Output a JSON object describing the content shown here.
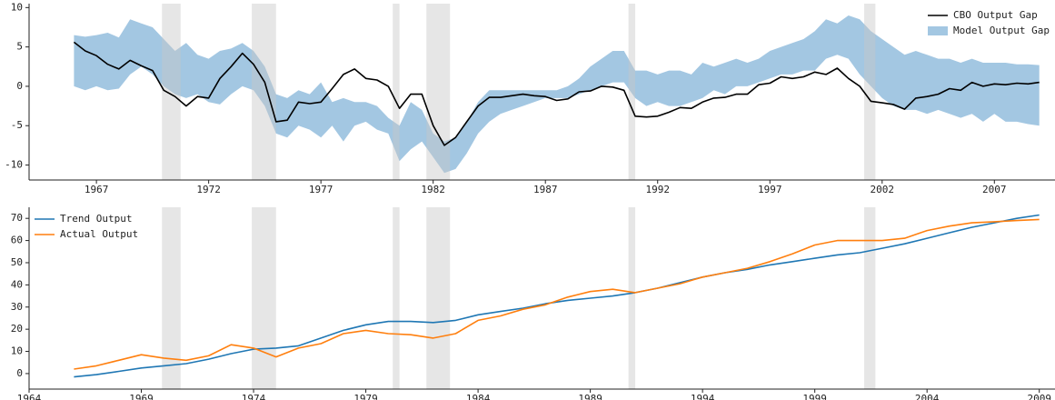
{
  "chart_data": [
    {
      "type": "line",
      "legend": "upper right",
      "xlim": [
        1964,
        2009.7
      ],
      "ylim": [
        -11.9,
        10.5
      ],
      "xticks": [
        1967,
        1972,
        1977,
        1982,
        1987,
        1992,
        1997,
        2002,
        2007
      ],
      "yticks": [
        -10,
        -5,
        0,
        5,
        10
      ],
      "shaded_spans": [
        [
          1969.92,
          1970.75
        ],
        [
          1973.92,
          1975.0
        ],
        [
          1980.2,
          1980.5
        ],
        [
          1981.7,
          1982.75
        ],
        [
          1990.7,
          1991.0
        ],
        [
          2001.2,
          2001.7
        ]
      ],
      "shade_color": "#c8c8c8",
      "x": [
        1966.0,
        1966.5,
        1967.0,
        1967.5,
        1968.0,
        1968.5,
        1969.0,
        1969.5,
        1970.0,
        1970.5,
        1971.0,
        1971.5,
        1972.0,
        1972.5,
        1973.0,
        1973.5,
        1974.0,
        1974.5,
        1975.0,
        1975.5,
        1976.0,
        1976.5,
        1977.0,
        1977.5,
        1978.0,
        1978.5,
        1979.0,
        1979.5,
        1980.0,
        1980.5,
        1981.0,
        1981.5,
        1982.0,
        1982.5,
        1983.0,
        1983.5,
        1984.0,
        1984.5,
        1985.0,
        1985.5,
        1986.0,
        1986.5,
        1987.0,
        1987.5,
        1988.0,
        1988.5,
        1989.0,
        1989.5,
        1990.0,
        1990.5,
        1991.0,
        1991.5,
        1992.0,
        1992.5,
        1993.0,
        1993.5,
        1994.0,
        1994.5,
        1995.0,
        1995.5,
        1996.0,
        1996.5,
        1997.0,
        1997.5,
        1998.0,
        1998.5,
        1999.0,
        1999.5,
        2000.0,
        2000.5,
        2001.0,
        2001.5,
        2002.0,
        2002.5,
        2003.0,
        2003.5,
        2004.0,
        2004.5,
        2005.0,
        2005.5,
        2006.0,
        2006.5,
        2007.0,
        2007.5,
        2008.0,
        2008.5,
        2009.0
      ],
      "series": [
        {
          "name": "CBO Output Gap",
          "color": "#000000",
          "values": [
            5.6,
            4.5,
            3.9,
            2.8,
            2.2,
            3.3,
            2.6,
            2.0,
            -0.5,
            -1.3,
            -2.5,
            -1.3,
            -1.5,
            1.0,
            2.5,
            4.2,
            2.8,
            0.5,
            -4.5,
            -4.3,
            -2.0,
            -2.2,
            -2.0,
            -0.3,
            1.5,
            2.2,
            1.0,
            0.8,
            0.0,
            -2.8,
            -1.0,
            -1.0,
            -5.0,
            -7.5,
            -6.5,
            -4.5,
            -2.5,
            -1.4,
            -1.4,
            -1.2,
            -1.0,
            -1.2,
            -1.3,
            -1.8,
            -1.6,
            -0.7,
            -0.6,
            0.0,
            -0.1,
            -0.5,
            -3.8,
            -3.9,
            -3.8,
            -3.3,
            -2.7,
            -2.8,
            -2.0,
            -1.5,
            -1.4,
            -1.0,
            -1.0,
            0.2,
            0.4,
            1.2,
            1.0,
            1.2,
            1.8,
            1.5,
            2.3,
            1.0,
            0.0,
            -1.9,
            -2.1,
            -2.3,
            -2.9,
            -1.5,
            -1.3,
            -1.0,
            -0.3,
            -0.5,
            0.5,
            0.0,
            0.3,
            0.2,
            0.4,
            0.3,
            0.5
          ]
        },
        {
          "name": "Model Output Gap",
          "color": "#a3c7e2",
          "upper": [
            6.5,
            6.3,
            6.5,
            6.8,
            6.2,
            8.5,
            8.0,
            7.5,
            6.0,
            4.5,
            5.5,
            4.0,
            3.5,
            4.5,
            4.8,
            5.5,
            4.5,
            2.5,
            -1.0,
            -1.5,
            -0.5,
            -1.0,
            0.5,
            -2.0,
            -1.5,
            -2.0,
            -2.0,
            -2.5,
            -4.0,
            -5.0,
            -2.0,
            -3.0,
            -6.0,
            -7.0,
            -6.5,
            -4.5,
            -2.0,
            -0.5,
            -0.5,
            -0.5,
            -0.5,
            -0.5,
            -0.5,
            -0.5,
            0.0,
            1.0,
            2.5,
            3.5,
            4.5,
            4.5,
            2.0,
            2.0,
            1.5,
            2.0,
            2.0,
            1.5,
            3.0,
            2.5,
            3.0,
            3.5,
            3.0,
            3.5,
            4.5,
            5.0,
            5.5,
            6.0,
            7.0,
            8.5,
            8.0,
            9.0,
            8.5,
            7.0,
            6.0,
            5.0,
            4.0,
            4.5,
            4.0,
            3.5,
            3.5,
            3.0,
            3.5,
            3.0,
            3.0,
            3.0,
            2.8,
            2.8,
            2.7
          ],
          "lower": [
            0.0,
            -0.5,
            0.0,
            -0.5,
            -0.3,
            1.5,
            2.5,
            1.5,
            0.0,
            -1.0,
            -1.5,
            -1.0,
            -2.0,
            -2.3,
            -1.0,
            0.0,
            -0.5,
            -2.5,
            -6.0,
            -6.5,
            -5.0,
            -5.5,
            -6.5,
            -5.0,
            -7.0,
            -5.0,
            -4.5,
            -5.5,
            -6.0,
            -9.5,
            -8.0,
            -7.0,
            -9.0,
            -11.0,
            -10.5,
            -8.5,
            -6.0,
            -4.5,
            -3.5,
            -3.0,
            -2.5,
            -2.0,
            -1.5,
            -1.5,
            -1.5,
            -1.0,
            -0.5,
            0.0,
            0.5,
            0.5,
            -1.5,
            -2.5,
            -2.0,
            -2.5,
            -2.5,
            -2.0,
            -1.5,
            -0.5,
            -1.0,
            0.0,
            0.0,
            0.5,
            1.0,
            1.5,
            1.5,
            2.0,
            2.0,
            3.5,
            4.0,
            3.5,
            1.5,
            0.0,
            -1.5,
            -2.5,
            -3.0,
            -3.0,
            -3.5,
            -3.0,
            -3.5,
            -4.0,
            -3.5,
            -4.5,
            -3.5,
            -4.5,
            -4.5,
            -4.8,
            -5.0
          ]
        }
      ]
    },
    {
      "type": "line",
      "legend": "upper left",
      "xlim": [
        1964,
        2009.7
      ],
      "ylim": [
        -7,
        75
      ],
      "xticks": [
        1964,
        1969,
        1974,
        1979,
        1984,
        1989,
        1994,
        1999,
        2004,
        2009
      ],
      "yticks": [
        0,
        10,
        20,
        30,
        40,
        50,
        60,
        70
      ],
      "shaded_spans": [
        [
          1969.92,
          1970.75
        ],
        [
          1973.92,
          1975.0
        ],
        [
          1980.2,
          1980.5
        ],
        [
          1981.7,
          1982.75
        ],
        [
          1990.7,
          1991.0
        ],
        [
          2001.2,
          2001.7
        ]
      ],
      "shade_color": "#c8c8c8",
      "x": [
        1966,
        1967,
        1968,
        1969,
        1970,
        1971,
        1972,
        1973,
        1974,
        1975,
        1976,
        1977,
        1978,
        1979,
        1980,
        1981,
        1982,
        1983,
        1984,
        1985,
        1986,
        1987,
        1988,
        1989,
        1990,
        1991,
        1992,
        1993,
        1994,
        1995,
        1996,
        1997,
        1998,
        1999,
        2000,
        2001,
        2002,
        2003,
        2004,
        2005,
        2006,
        2007,
        2008,
        2009
      ],
      "series": [
        {
          "name": "Trend Output",
          "color": "#1f77b4",
          "values": [
            -1.5,
            -0.5,
            1.0,
            2.5,
            3.5,
            4.5,
            6.5,
            9.0,
            11.0,
            11.5,
            12.5,
            16.0,
            19.5,
            22.0,
            23.5,
            23.5,
            23.0,
            24.0,
            26.5,
            28.0,
            29.5,
            31.5,
            33.0,
            34.0,
            35.0,
            36.5,
            38.5,
            41.0,
            43.5,
            45.5,
            47.0,
            49.0,
            50.5,
            52.0,
            53.5,
            54.5,
            56.5,
            58.5,
            61.0,
            63.5,
            66.0,
            68.0,
            70.0,
            71.5
          ]
        },
        {
          "name": "Actual Output",
          "color": "#ff7f0e",
          "values": [
            2.0,
            3.5,
            6.0,
            8.5,
            7.0,
            6.0,
            8.0,
            13.0,
            11.5,
            7.5,
            11.5,
            13.5,
            18.0,
            19.5,
            18.0,
            17.5,
            16.0,
            18.0,
            24.0,
            26.0,
            29.0,
            31.0,
            34.5,
            37.0,
            38.0,
            36.5,
            38.5,
            40.5,
            43.5,
            45.5,
            47.5,
            50.5,
            54.0,
            58.0,
            60.0,
            60.0,
            60.0,
            61.0,
            64.5,
            66.5,
            68.0,
            68.5,
            69.0,
            69.5
          ]
        }
      ]
    }
  ]
}
